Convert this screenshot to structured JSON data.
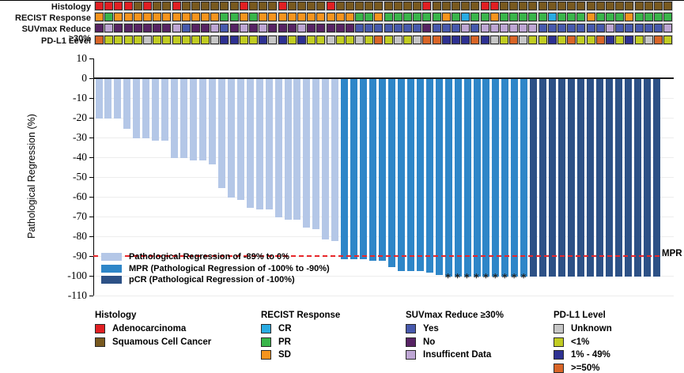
{
  "colors": {
    "A": "#e11f23",
    "S": "#78591f",
    "SD": "#f7941d",
    "PR": "#39b54a",
    "CR": "#29abe2",
    "Y": "#4759ad",
    "N": "#572364",
    "I": "#bea6d4",
    "U": "#c6c6c6",
    "L": "#c1cc22",
    "M": "#2e3192",
    "O": "#d96527",
    "reg": "#b4c7e7",
    "mpr": "#2e86c8",
    "pcr": "#2d5186",
    "mpr_line": "#e8262a"
  },
  "tracks": {
    "rows": [
      {
        "label": "Histology",
        "codes": [
          "A",
          "A",
          "A",
          "A",
          "S",
          "A",
          "S",
          "S",
          "A",
          "S",
          "S",
          "S",
          "S",
          "S",
          "S",
          "A",
          "S",
          "S",
          "S",
          "A",
          "S",
          "S",
          "S",
          "S",
          "A",
          "S",
          "S",
          "S",
          "S",
          "S",
          "S",
          "S",
          "S",
          "S",
          "A",
          "S",
          "S",
          "S",
          "S",
          "S",
          "A",
          "A",
          "S",
          "S",
          "S",
          "S",
          "S",
          "S",
          "S",
          "S",
          "S",
          "S",
          "S",
          "S",
          "S",
          "S",
          "S",
          "S",
          "S",
          "S"
        ]
      },
      {
        "label": "RECIST Response",
        "codes": [
          "SD",
          "PR",
          "SD",
          "SD",
          "SD",
          "SD",
          "SD",
          "SD",
          "SD",
          "SD",
          "SD",
          "SD",
          "SD",
          "PR",
          "PR",
          "SD",
          "PR",
          "SD",
          "SD",
          "SD",
          "SD",
          "SD",
          "SD",
          "SD",
          "SD",
          "SD",
          "SD",
          "PR",
          "PR",
          "SD",
          "PR",
          "PR",
          "PR",
          "PR",
          "PR",
          "PR",
          "SD",
          "PR",
          "CR",
          "PR",
          "PR",
          "SD",
          "PR",
          "PR",
          "PR",
          "PR",
          "PR",
          "CR",
          "PR",
          "PR",
          "PR",
          "SD",
          "PR",
          "PR",
          "PR",
          "SD",
          "PR",
          "PR",
          "PR",
          "PR"
        ]
      },
      {
        "label": "SUVmax Reduce ≥30%",
        "codes": [
          "N",
          "I",
          "N",
          "N",
          "N",
          "N",
          "N",
          "N",
          "I",
          "Y",
          "N",
          "N",
          "I",
          "Y",
          "N",
          "I",
          "N",
          "I",
          "N",
          "N",
          "N",
          "I",
          "N",
          "N",
          "N",
          "N",
          "N",
          "Y",
          "Y",
          "Y",
          "Y",
          "Y",
          "Y",
          "Y",
          "N",
          "Y",
          "Y",
          "Y",
          "I",
          "Y",
          "I",
          "I",
          "I",
          "I",
          "I",
          "I",
          "Y",
          "Y",
          "Y",
          "Y",
          "Y",
          "Y",
          "Y",
          "I",
          "Y",
          "Y",
          "Y",
          "Y",
          "Y",
          "I"
        ]
      },
      {
        "label": "PD-L1 Level",
        "codes": [
          "O",
          "L",
          "L",
          "L",
          "L",
          "U",
          "L",
          "L",
          "L",
          "L",
          "L",
          "L",
          "U",
          "M",
          "M",
          "L",
          "L",
          "M",
          "U",
          "M",
          "L",
          "M",
          "L",
          "L",
          "U",
          "L",
          "L",
          "U",
          "L",
          "O",
          "L",
          "U",
          "L",
          "U",
          "O",
          "O",
          "M",
          "M",
          "M",
          "O",
          "M",
          "U",
          "L",
          "O",
          "U",
          "L",
          "L",
          "M",
          "L",
          "O",
          "L",
          "L",
          "O",
          "M",
          "L",
          "M",
          "L",
          "U",
          "O",
          "L"
        ]
      }
    ]
  },
  "chart_data": {
    "type": "bar",
    "title": "",
    "xlabel": "",
    "ylabel": "Pathological Regression (%)",
    "ylim": [
      -110,
      10
    ],
    "yticks": [
      10,
      0,
      -10,
      -20,
      -30,
      -40,
      -50,
      -60,
      -70,
      -80,
      -90,
      -100,
      -110
    ],
    "grid": true,
    "values": [
      -20,
      -20,
      -20,
      -25,
      -30,
      -30,
      -31,
      -31,
      -40,
      -40,
      -41,
      -41,
      -43,
      -55,
      -60,
      -61,
      -65,
      -66,
      -66,
      -70,
      -71,
      -71,
      -75,
      -76,
      -81,
      -82,
      -91,
      -91,
      -91,
      -92,
      -92,
      -95,
      -97,
      -97,
      -97,
      -98,
      -99,
      -100,
      -100,
      -100,
      -100,
      -100,
      -100,
      -100,
      -100,
      -100,
      -100,
      -100,
      -100,
      -100,
      -100,
      -100,
      -100,
      -100,
      -100,
      -100,
      -100,
      -100,
      -100,
      -100
    ],
    "classes": [
      "reg",
      "reg",
      "reg",
      "reg",
      "reg",
      "reg",
      "reg",
      "reg",
      "reg",
      "reg",
      "reg",
      "reg",
      "reg",
      "reg",
      "reg",
      "reg",
      "reg",
      "reg",
      "reg",
      "reg",
      "reg",
      "reg",
      "reg",
      "reg",
      "reg",
      "reg",
      "mpr",
      "mpr",
      "mpr",
      "mpr",
      "mpr",
      "mpr",
      "mpr",
      "mpr",
      "mpr",
      "mpr",
      "mpr",
      "mpr",
      "mpr",
      "mpr",
      "mpr",
      "mpr",
      "mpr",
      "mpr",
      "mpr",
      "mpr",
      "pcr",
      "pcr",
      "pcr",
      "pcr",
      "pcr",
      "pcr",
      "pcr",
      "pcr",
      "pcr",
      "pcr",
      "pcr",
      "pcr",
      "pcr",
      "pcr"
    ],
    "asterisk_indices": [
      37,
      38,
      39,
      40,
      41,
      42,
      43,
      44,
      45
    ],
    "asterisk_char": "*",
    "reference_line": {
      "value": -90,
      "label": "MPR"
    },
    "legend_position": "bottom-left-inside",
    "legend": [
      {
        "key": "reg",
        "label": "Pathological Regression of -89% to 0%"
      },
      {
        "key": "mpr",
        "label": "MPR (Pathological Regression of -100% to -90%)"
      },
      {
        "key": "pcr",
        "label": "pCR (Pathological Regression of -100%)"
      }
    ]
  },
  "bottom_legends": [
    {
      "title": "Histology",
      "items": [
        {
          "code": "A",
          "label": "Adenocarcinoma"
        },
        {
          "code": "S",
          "label": "Squamous Cell Cancer"
        }
      ]
    },
    {
      "title": "RECIST Response",
      "items": [
        {
          "code": "CR",
          "label": "CR"
        },
        {
          "code": "PR",
          "label": "PR"
        },
        {
          "code": "SD",
          "label": "SD"
        }
      ]
    },
    {
      "title": "SUVmax Reduce ≥30%",
      "items": [
        {
          "code": "Y",
          "label": "Yes"
        },
        {
          "code": "N",
          "label": "No"
        },
        {
          "code": "I",
          "label": "Insufficent Data"
        }
      ]
    },
    {
      "title": "PD-L1 Level",
      "items": [
        {
          "code": "U",
          "label": "Unknown"
        },
        {
          "code": "L",
          "label": "<1%"
        },
        {
          "code": "M",
          "label": "1% - 49%"
        },
        {
          "code": "O",
          "label": ">=50%"
        }
      ]
    }
  ]
}
